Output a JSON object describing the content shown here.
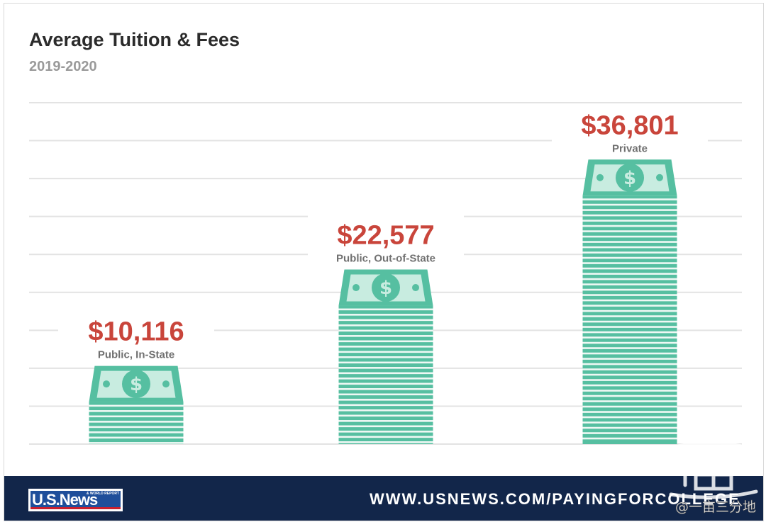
{
  "title": "Average Tuition & Fees",
  "subtitle": "2019-2020",
  "chart_data": {
    "type": "bar",
    "title": "Average Tuition & Fees",
    "subtitle": "2019-2020",
    "categories": [
      "Public, In-State",
      "Public, Out-of-State",
      "Private"
    ],
    "values": [
      10116,
      22577,
      36801
    ],
    "value_labels": [
      "$10,116",
      "$22,577",
      "$36,801"
    ],
    "ylim": [
      0,
      40000
    ],
    "grid": true,
    "bar_style": "stack-of-dollar-bills",
    "colors": {
      "bar": "#56bfa1",
      "bar_stripe": "#eef8f4",
      "bill_face": "#c8ece0",
      "value_label": "#c9453b",
      "category_label": "#707070",
      "grid": "#e3e3e3"
    }
  },
  "footer": {
    "logo_text": "U.S.News",
    "logo_small_text": "& WORLD REPORT",
    "url": "WWW.USNEWS.COM/PAYINGFORCOLLEGE",
    "background": "#12264a"
  },
  "watermark": {
    "text": "@一亩三分地",
    "icon": "seal-icon"
  }
}
